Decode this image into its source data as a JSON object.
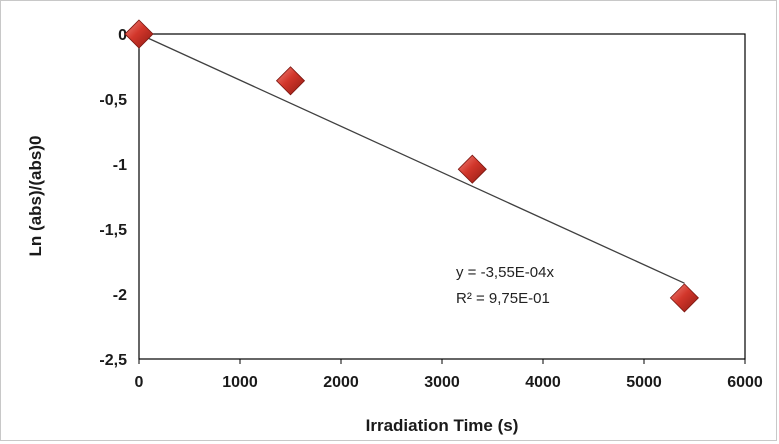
{
  "chart_data": {
    "type": "scatter",
    "title": "",
    "xlabel": "Irradiation Time (s)",
    "ylabel": "Ln (abs)/(abs)0",
    "xlim": [
      0,
      6000
    ],
    "ylim": [
      -2.5,
      0
    ],
    "x_ticks": [
      0,
      1000,
      2000,
      3000,
      4000,
      5000,
      6000
    ],
    "y_ticks": [
      0,
      -0.5,
      -1,
      -1.5,
      -2,
      -2.5
    ],
    "x_tick_labels": [
      "0",
      "1000",
      "2000",
      "3000",
      "4000",
      "5000",
      "6000"
    ],
    "y_tick_labels": [
      "0",
      "-0,5",
      "-1",
      "-1,5",
      "-2",
      "-2,5"
    ],
    "grid": false,
    "legend": "none",
    "series": [
      {
        "x": [
          0,
          1500,
          3300,
          5400
        ],
        "y": [
          0,
          -0.36,
          -1.04,
          -2.03
        ],
        "marker": "diamond",
        "color": "#c0392b"
      }
    ],
    "trendline": {
      "type": "linear",
      "slope": -0.000355,
      "intercept": 0,
      "x_range": [
        0,
        5400
      ],
      "color": "#404040"
    },
    "annotations": {
      "equation": "y = -3,55E-04x",
      "r_squared": "R² = 9,75E-01"
    }
  }
}
